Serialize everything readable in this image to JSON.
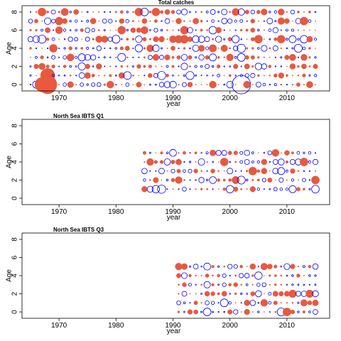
{
  "chart_data": [
    {
      "type": "scatter",
      "subtype": "bubble",
      "title": "Total catches",
      "xlabel": "year",
      "ylabel": "Age",
      "xlim": [
        1963.5,
        2017.5
      ],
      "ylim": [
        -0.7,
        8.7
      ],
      "xticks": [
        1970,
        1980,
        1990,
        2000,
        2010
      ],
      "yticks": [
        0,
        2,
        4,
        6,
        8
      ],
      "year_range": [
        1965,
        2015
      ],
      "ages": [
        0,
        1,
        2,
        3,
        4,
        5,
        6,
        7,
        8
      ],
      "legend": "none",
      "grid": false,
      "series": [
        {
          "name": "positive residual",
          "color": "#e8593f",
          "style": "filled circle"
        },
        {
          "name": "negative residual",
          "color": "#0000ff",
          "style": "open circle"
        }
      ],
      "notable_points": [
        {
          "year": 1968,
          "age": 0,
          "sign": "positive",
          "size": "largest"
        },
        {
          "year": 1967,
          "age": 0,
          "sign": "positive",
          "size": "large"
        },
        {
          "year": 1968,
          "age": 1,
          "sign": "positive",
          "size": "large"
        },
        {
          "year": 2002,
          "age": 0,
          "sign": "negative",
          "size": "largest"
        }
      ]
    },
    {
      "type": "scatter",
      "subtype": "bubble",
      "title": "North Sea IBTS Q1",
      "xlabel": "year",
      "ylabel": "Age",
      "xlim": [
        1963.5,
        2017.5
      ],
      "ylim": [
        -0.7,
        8.7
      ],
      "xticks": [
        1970,
        1980,
        1990,
        2000,
        2010
      ],
      "yticks": [
        0,
        2,
        4,
        6,
        8
      ],
      "year_range": [
        1985,
        2015
      ],
      "ages": [
        1,
        2,
        3,
        4,
        5
      ],
      "legend": "none",
      "grid": false,
      "series": [
        {
          "name": "positive residual",
          "color": "#e8593f",
          "style": "filled circle"
        },
        {
          "name": "negative residual",
          "color": "#0000ff",
          "style": "open circle"
        }
      ]
    },
    {
      "type": "scatter",
      "subtype": "bubble",
      "title": "North Sea IBTS Q3",
      "xlabel": "year",
      "ylabel": "Age",
      "xlim": [
        1963.5,
        2017.5
      ],
      "ylim": [
        -0.7,
        8.7
      ],
      "xticks": [
        1970,
        1980,
        1990,
        2000,
        2010
      ],
      "yticks": [
        0,
        2,
        4,
        6,
        8
      ],
      "year_range": [
        1991,
        2015
      ],
      "ages": [
        0,
        1,
        2,
        3,
        4,
        5
      ],
      "legend": "none",
      "grid": false,
      "series": [
        {
          "name": "positive residual",
          "color": "#e8593f",
          "style": "filled circle"
        },
        {
          "name": "negative residual",
          "color": "#0000ff",
          "style": "open circle"
        }
      ]
    }
  ]
}
